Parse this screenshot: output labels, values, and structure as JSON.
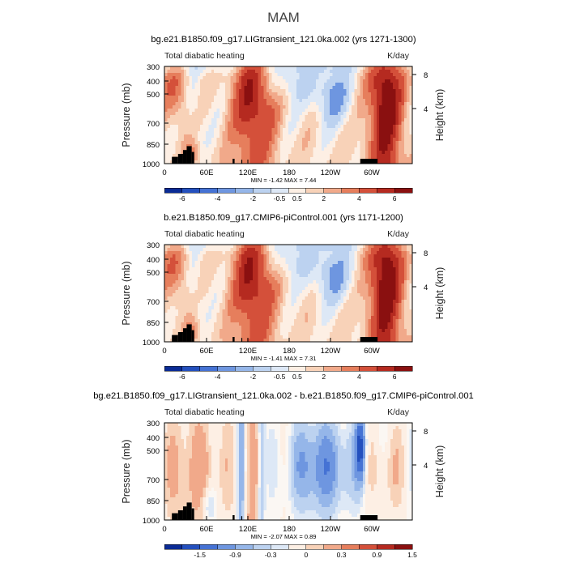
{
  "figure": {
    "title": "MAM"
  },
  "colors": {
    "warm": [
      "#fdefe4",
      "#f8d2b8",
      "#f1a98a",
      "#e67e5c",
      "#d4503a",
      "#b52a20",
      "#8a1010"
    ],
    "cool": [
      "#dde8f6",
      "#bcd2f0",
      "#95b6e9",
      "#6e96e0",
      "#4572d4",
      "#2450be",
      "#0a2b95"
    ],
    "neutral": "#fbf7f3",
    "topo": "#000000"
  },
  "chart_data": [
    {
      "type": "heatmap",
      "title": "bg.e21.B1850.f09_g17.LIGtransient_121.0ka.002 (yrs 1271-1300)",
      "left_label": "Total diabatic heating",
      "right_label": "K/day",
      "ylabel": "Pressure (mb)",
      "y2label": "Height (km)",
      "x_ticks": [
        "0",
        "60E",
        "120E",
        "180",
        "120W",
        "60W"
      ],
      "y_ticks": [
        "300",
        "400",
        "500",
        "700",
        "850",
        "1000"
      ],
      "y2_ticks": [
        "8",
        "4"
      ],
      "stats": "MIN =   -1.42   MAX =    7.44",
      "min": -1.42,
      "max": 7.44,
      "colorbar_labels": [
        "-6",
        "-4",
        "-2",
        "-0.5",
        "0.5",
        "2",
        "4",
        "6"
      ],
      "palette": "full"
    },
    {
      "type": "heatmap",
      "title": "b.e21.B1850.f09_g17.CMIP6-piControl.001 (yrs 1171-1200)",
      "left_label": "Total diabatic heating",
      "right_label": "K/day",
      "ylabel": "Pressure (mb)",
      "y2label": "Height (km)",
      "x_ticks": [
        "0",
        "60E",
        "120E",
        "180",
        "120W",
        "60W"
      ],
      "y_ticks": [
        "300",
        "400",
        "500",
        "700",
        "850",
        "1000"
      ],
      "y2_ticks": [
        "8",
        "4"
      ],
      "stats": "MIN =   -1.41   MAX =    7.31",
      "min": -1.41,
      "max": 7.31,
      "colorbar_labels": [
        "-6",
        "-4",
        "-2",
        "-0.5",
        "0.5",
        "2",
        "4",
        "6"
      ],
      "palette": "full"
    },
    {
      "type": "heatmap",
      "title": "bg.e21.B1850.f09_g17.LIGtransient_121.0ka.002 - b.e21.B1850.f09_g17.CMIP6-piControl.001",
      "left_label": "Total diabatic heating",
      "right_label": "K/day",
      "ylabel": "Pressure (mb)",
      "y2label": "Height (km)",
      "x_ticks": [
        "0",
        "60E",
        "120E",
        "180",
        "120W",
        "60W"
      ],
      "y_ticks": [
        "300",
        "400",
        "500",
        "700",
        "850",
        "1000"
      ],
      "y2_ticks": [
        "8",
        "4"
      ],
      "stats": "MIN =   -2.07   MAX =    0.89",
      "min": -2.07,
      "max": 0.89,
      "colorbar_labels": [
        "-1.5",
        "-0.9",
        "-0.3",
        "0",
        "0.3",
        "0.9",
        "1.5"
      ],
      "palette": "diff"
    }
  ]
}
